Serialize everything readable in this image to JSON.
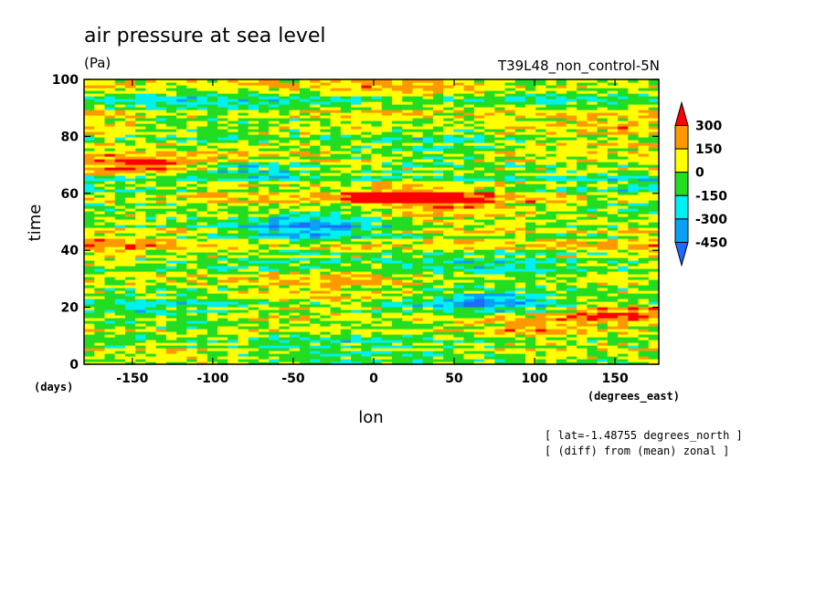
{
  "chart_data": {
    "type": "heatmap",
    "title": "air pressure at sea level",
    "units": "(Pa)",
    "run_label": "T39L48_non_control-5N",
    "xlabel": "lon",
    "ylabel": "time",
    "x_unit": "(degrees_east)",
    "y_unit": "(days)",
    "xlim": [
      -180,
      177.2
    ],
    "ylim": [
      0,
      100
    ],
    "x_ticks": [
      "-150",
      "-100",
      "-50",
      "0",
      "50",
      "100",
      "150"
    ],
    "x_tick_values": [
      -150,
      -100,
      -50,
      0,
      50,
      100,
      150
    ],
    "y_ticks": [
      "0",
      "20",
      "40",
      "60",
      "80",
      "100"
    ],
    "y_tick_values": [
      0,
      20,
      40,
      60,
      80,
      100
    ],
    "colorbar": {
      "levels": [
        -450,
        -300,
        -150,
        0,
        150,
        300
      ],
      "labels": [
        "300",
        "150",
        "0",
        "-150",
        "-300",
        "-450"
      ],
      "colors": [
        "#1f6bff",
        "#0aa0f5",
        "#00f0f0",
        "#22dd22",
        "#ffff00",
        "#ff9900",
        "#ff0000"
      ]
    },
    "notes": [
      "[ lat=-1.48755 degrees_north ]",
      "[ (diff) from (mean) zonal ]"
    ],
    "features": [
      {
        "lon": 25,
        "time": 59,
        "sign": "positive"
      },
      {
        "lon": -155,
        "time": 70,
        "sign": "positive"
      },
      {
        "lon": 160,
        "time": 18,
        "sign": "positive"
      },
      {
        "lon": -75,
        "time": 68,
        "sign": "negative"
      },
      {
        "lon": 70,
        "time": 22,
        "sign": "negative"
      },
      {
        "lon": -40,
        "time": 48,
        "sign": "negative"
      }
    ]
  }
}
